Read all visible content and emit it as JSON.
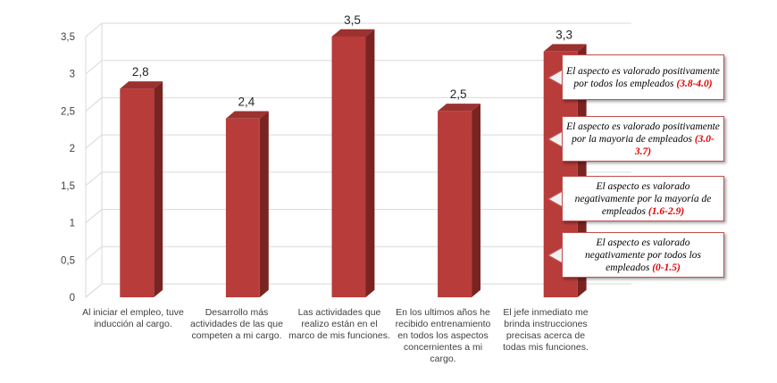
{
  "chart_data": {
    "type": "bar",
    "title": "",
    "xlabel": "",
    "ylabel": "",
    "ylim": [
      0,
      3.5
    ],
    "yticks": [
      "0",
      "0,5",
      "1",
      "1,5",
      "2",
      "2,5",
      "3",
      "3,5"
    ],
    "grid": true,
    "bar_color": "#b83c3a",
    "bar_side_color": "#7a2422",
    "bar_top_color": "#9c3230",
    "categories": [
      "Al iniciar el empleo, tuve inducción al cargo.",
      "Desarrollo más actividades de las que competen a mi cargo.",
      "Las actividades que realizo están en el marco de mis funciones.",
      "En los ultimos años he recibido entrenamiento en todos los aspectos concernientes a mi cargo.",
      "El jefe inmediato me brinda instrucciones precisas acerca de todas mis funciones."
    ],
    "values": [
      2.8,
      2.4,
      3.5,
      2.5,
      3.3
    ],
    "value_labels": [
      "2,8",
      "2,4",
      "3,5",
      "2,5",
      "3,3"
    ]
  },
  "legend": [
    {
      "text": "El aspecto es valorado positivamente por todos los empleados",
      "range": "(3.8-4.0)"
    },
    {
      "text": "El aspecto es valorado positivamente por la mayoria de empleados",
      "range": "(3.0-3.7)"
    },
    {
      "text": "El aspecto es valorado negativamente por la mayoría de empleados",
      "range": "(1.6-2.9)"
    },
    {
      "text": "El aspecto es valorado negativamente por todos los empleados",
      "range": "(0-1.5)"
    }
  ]
}
